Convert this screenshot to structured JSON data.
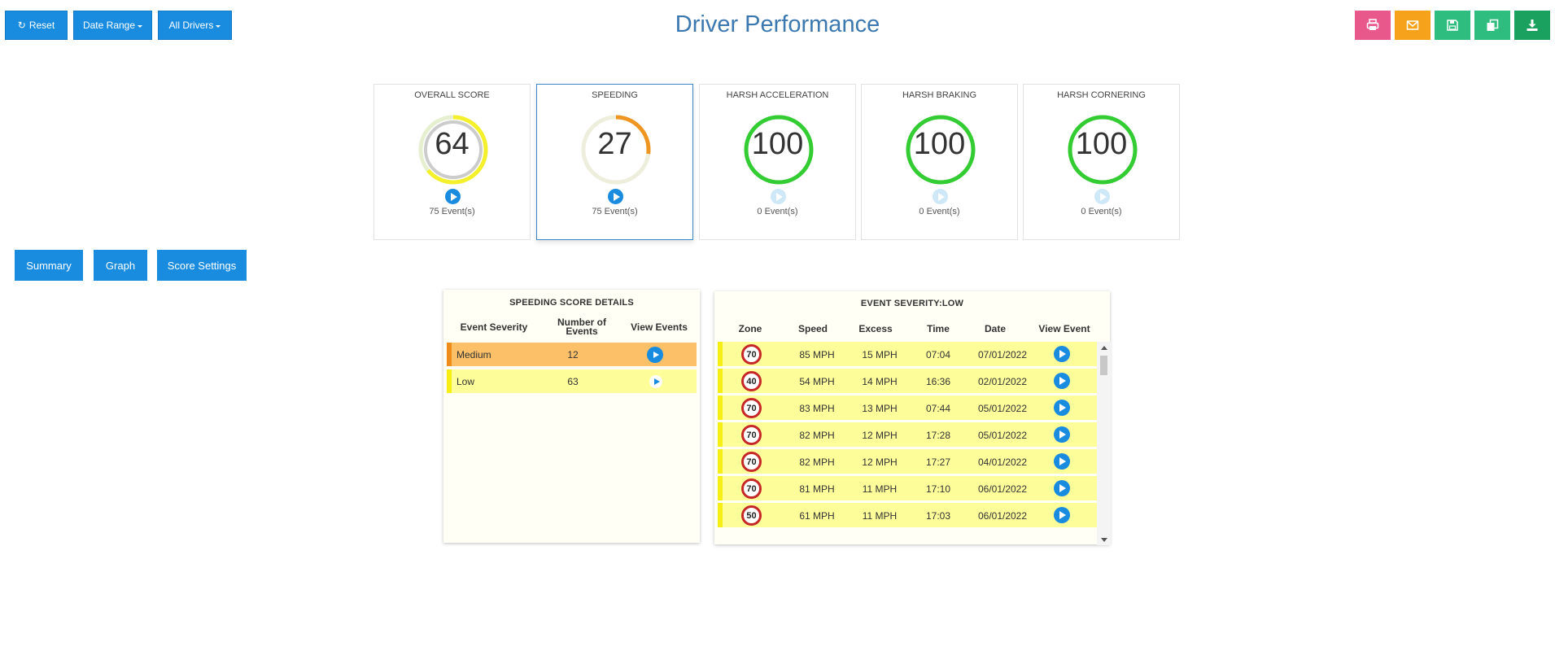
{
  "toolbar": {
    "reset_label": "Reset",
    "date_range_label": "Date Range",
    "all_drivers_label": "All Drivers"
  },
  "page_title": "Driver Performance",
  "actions": [
    {
      "name": "print-icon",
      "color": "#e8588a"
    },
    {
      "name": "email-icon",
      "color": "#f7a21b"
    },
    {
      "name": "save-icon",
      "color": "#2ebd7e"
    },
    {
      "name": "copy-icon",
      "color": "#2ebd7e"
    },
    {
      "name": "download-icon",
      "color": "#1aa160"
    }
  ],
  "scores": [
    {
      "title": "OVERALL SCORE",
      "value": "64",
      "events": "75 Event(s)",
      "score": 64,
      "color": "#f4f12c",
      "active": false
    },
    {
      "title": "SPEEDING",
      "value": "27",
      "events": "75 Event(s)",
      "score": 27,
      "color": "#ef9522",
      "active": true
    },
    {
      "title": "HARSH ACCELERATION",
      "value": "100",
      "events": "0 Event(s)",
      "score": 100,
      "color": "#33cc33",
      "active": false
    },
    {
      "title": "HARSH BRAKING",
      "value": "100",
      "events": "0 Event(s)",
      "score": 100,
      "color": "#33cc33",
      "active": false
    },
    {
      "title": "HARSH CORNERING",
      "value": "100",
      "events": "0 Event(s)",
      "score": 100,
      "color": "#33cc33",
      "active": false
    }
  ],
  "tabs": {
    "summary": "Summary",
    "graph": "Graph",
    "score_settings": "Score Settings"
  },
  "details": {
    "title": "SPEEDING SCORE DETAILS",
    "col_severity": "Event Severity",
    "col_count": "Number of Events",
    "col_view": "View Events",
    "rows": [
      {
        "severity": "Medium",
        "count": "12",
        "bg": "#fbc068",
        "bar": "#f08c1a"
      },
      {
        "severity": "Low",
        "count": "63",
        "bg": "#fdfd9a",
        "bar": "#f6ee14"
      }
    ]
  },
  "events_panel": {
    "title": "EVENT SEVERITY:LOW",
    "col_zone": "Zone",
    "col_speed": "Speed",
    "col_excess": "Excess",
    "col_time": "Time",
    "col_date": "Date",
    "col_view": "View Event",
    "rows": [
      {
        "zone": "70",
        "speed": "85 MPH",
        "excess": "15 MPH",
        "time": "07:04",
        "date": "07/01/2022"
      },
      {
        "zone": "40",
        "speed": "54 MPH",
        "excess": "14 MPH",
        "time": "16:36",
        "date": "02/01/2022"
      },
      {
        "zone": "70",
        "speed": "83 MPH",
        "excess": "13 MPH",
        "time": "07:44",
        "date": "05/01/2022"
      },
      {
        "zone": "70",
        "speed": "82 MPH",
        "excess": "12 MPH",
        "time": "17:28",
        "date": "05/01/2022"
      },
      {
        "zone": "70",
        "speed": "82 MPH",
        "excess": "12 MPH",
        "time": "17:27",
        "date": "04/01/2022"
      },
      {
        "zone": "70",
        "speed": "81 MPH",
        "excess": "11 MPH",
        "time": "17:10",
        "date": "06/01/2022"
      },
      {
        "zone": "50",
        "speed": "61 MPH",
        "excess": "11 MPH",
        "time": "17:03",
        "date": "06/01/2022"
      }
    ]
  }
}
